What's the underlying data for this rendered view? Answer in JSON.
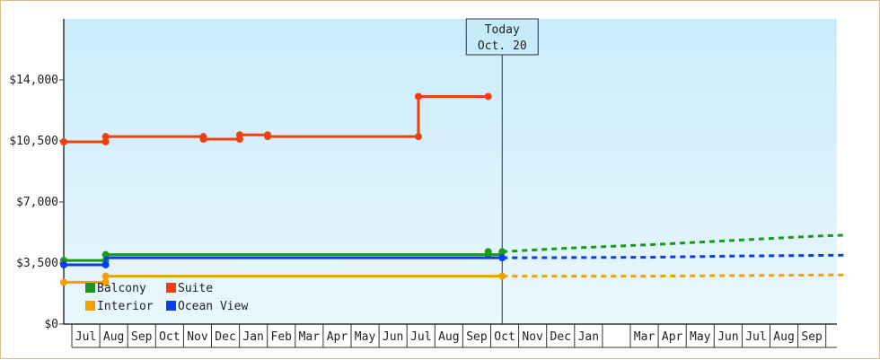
{
  "chart_data": {
    "type": "line",
    "title": "",
    "xlabel": "",
    "ylabel": "",
    "ylim": [
      0,
      17500
    ],
    "yticks": [
      0,
      3500,
      7000,
      10500,
      14000
    ],
    "ytick_labels": [
      "$0",
      "$3,500",
      "$7,000",
      "$10,500",
      "$14,000"
    ],
    "xtick_labels": [
      "Jul",
      "Aug",
      "Sep",
      "Oct",
      "Nov",
      "Dec",
      "Jan",
      "Feb",
      "Mar",
      "Apr",
      "May",
      "Jun",
      "Jul",
      "Aug",
      "Sep",
      "Oct",
      "Nov",
      "Dec",
      "Jan",
      "",
      "Mar",
      "Apr",
      "May",
      "Jun",
      "Jul",
      "Aug",
      "Sep"
    ],
    "x_month_start": "Jul",
    "grid": false,
    "legend_position": "bottom-left",
    "today": {
      "label_line1": "Today",
      "label_line2": "Oct. 20",
      "month_index": 15.7
    },
    "series": [
      {
        "name": "Balcony",
        "color": "#1a9a1a",
        "points": [
          [
            0,
            3650
          ],
          [
            1.5,
            3650
          ],
          [
            1.5,
            3980
          ],
          [
            15.7,
            3980
          ],
          [
            15.7,
            4150
          ]
        ],
        "markers": [
          [
            0,
            3650
          ],
          [
            1.5,
            3650
          ],
          [
            1.5,
            3980
          ],
          [
            15.2,
            3980
          ],
          [
            15.2,
            4150
          ],
          [
            15.7,
            4150
          ]
        ],
        "forecast": [
          [
            15.7,
            4150
          ],
          [
            18,
            4350
          ],
          [
            21,
            4550
          ],
          [
            24,
            4800
          ],
          [
            27,
            5050
          ],
          [
            28,
            5100
          ]
        ]
      },
      {
        "name": "Suite",
        "color": "#f04010",
        "points": [
          [
            0,
            10450
          ],
          [
            1.5,
            10450
          ],
          [
            1.5,
            10750
          ],
          [
            5,
            10750
          ],
          [
            5,
            10600
          ],
          [
            6.3,
            10600
          ],
          [
            6.3,
            10850
          ],
          [
            7.3,
            10850
          ],
          [
            7.3,
            10750
          ],
          [
            12.7,
            10750
          ],
          [
            12.7,
            13050
          ],
          [
            15.2,
            13050
          ]
        ],
        "markers": [
          [
            0,
            10450
          ],
          [
            1.5,
            10450
          ],
          [
            1.5,
            10750
          ],
          [
            5,
            10750
          ],
          [
            5,
            10600
          ],
          [
            6.3,
            10600
          ],
          [
            6.3,
            10850
          ],
          [
            7.3,
            10850
          ],
          [
            7.3,
            10750
          ],
          [
            12.7,
            10750
          ],
          [
            12.7,
            13050
          ],
          [
            15.2,
            13050
          ]
        ],
        "forecast": []
      },
      {
        "name": "Interior",
        "color": "#f5a000",
        "points": [
          [
            0,
            2400
          ],
          [
            1.5,
            2400
          ],
          [
            1.5,
            2750
          ],
          [
            15.7,
            2750
          ]
        ],
        "markers": [
          [
            0,
            2400
          ],
          [
            1.5,
            2400
          ],
          [
            1.5,
            2750
          ],
          [
            15.7,
            2750
          ]
        ],
        "forecast": [
          [
            15.7,
            2750
          ],
          [
            21,
            2750
          ],
          [
            24,
            2780
          ],
          [
            28,
            2820
          ]
        ]
      },
      {
        "name": "Ocean View",
        "color": "#0a3cf0",
        "points": [
          [
            0,
            3400
          ],
          [
            1.5,
            3400
          ],
          [
            1.5,
            3800
          ],
          [
            15.7,
            3800
          ]
        ],
        "markers": [
          [
            0,
            3400
          ],
          [
            1.5,
            3400
          ],
          [
            15.7,
            3800
          ]
        ],
        "forecast": [
          [
            15.7,
            3800
          ],
          [
            21,
            3830
          ],
          [
            24,
            3900
          ],
          [
            28,
            3950
          ]
        ]
      }
    ]
  }
}
